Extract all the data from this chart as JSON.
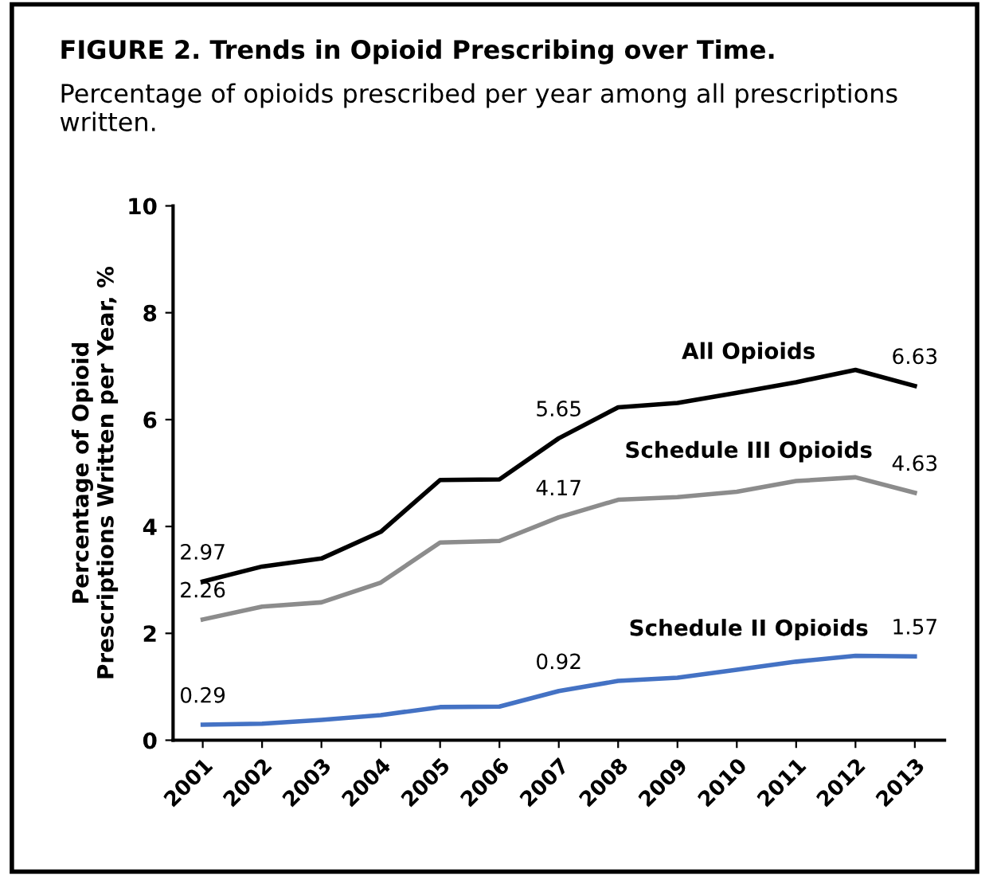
{
  "chart_data": {
    "type": "line",
    "title": "FIGURE 2. Trends in Opioid Prescribing over Time.",
    "subtitle": "Percentage of opioids prescribed per year among all prescriptions written.",
    "ylabel": "Percentage of Opioid\nPrescriptions Written per Year, %",
    "categories": [
      "2001",
      "2002",
      "2003",
      "2004",
      "2005",
      "2006",
      "2007",
      "2008",
      "2009",
      "2010",
      "2011",
      "2012",
      "2013"
    ],
    "series": [
      {
        "name": "All Opioids",
        "color": "#000000",
        "values": [
          2.97,
          3.25,
          3.4,
          3.9,
          4.87,
          4.88,
          5.65,
          6.23,
          6.31,
          6.5,
          6.7,
          6.93,
          6.63
        ],
        "value_labels": [
          "2.97",
          null,
          null,
          null,
          null,
          null,
          "5.65",
          null,
          null,
          null,
          null,
          null,
          "6.63"
        ]
      },
      {
        "name": "Schedule III Opioids",
        "color": "#8c8c8c",
        "values": [
          2.26,
          2.5,
          2.58,
          2.95,
          3.7,
          3.73,
          4.17,
          4.5,
          4.55,
          4.65,
          4.85,
          4.92,
          4.63
        ],
        "value_labels": [
          "2.26",
          null,
          null,
          null,
          null,
          null,
          "4.17",
          null,
          null,
          null,
          null,
          null,
          "4.63"
        ]
      },
      {
        "name": "Schedule II Opioids",
        "color": "#4472c4",
        "values": [
          0.29,
          0.31,
          0.38,
          0.47,
          0.62,
          0.63,
          0.92,
          1.11,
          1.17,
          1.32,
          1.47,
          1.58,
          1.57
        ],
        "value_labels": [
          "0.29",
          null,
          null,
          null,
          null,
          null,
          "0.92",
          null,
          null,
          null,
          null,
          null,
          "1.57"
        ]
      }
    ],
    "ylim": [
      0,
      10
    ],
    "yticks": [
      0,
      2,
      4,
      6,
      8,
      10
    ],
    "grid": false,
    "legend": false,
    "marker": "none",
    "line_style": "solid"
  }
}
